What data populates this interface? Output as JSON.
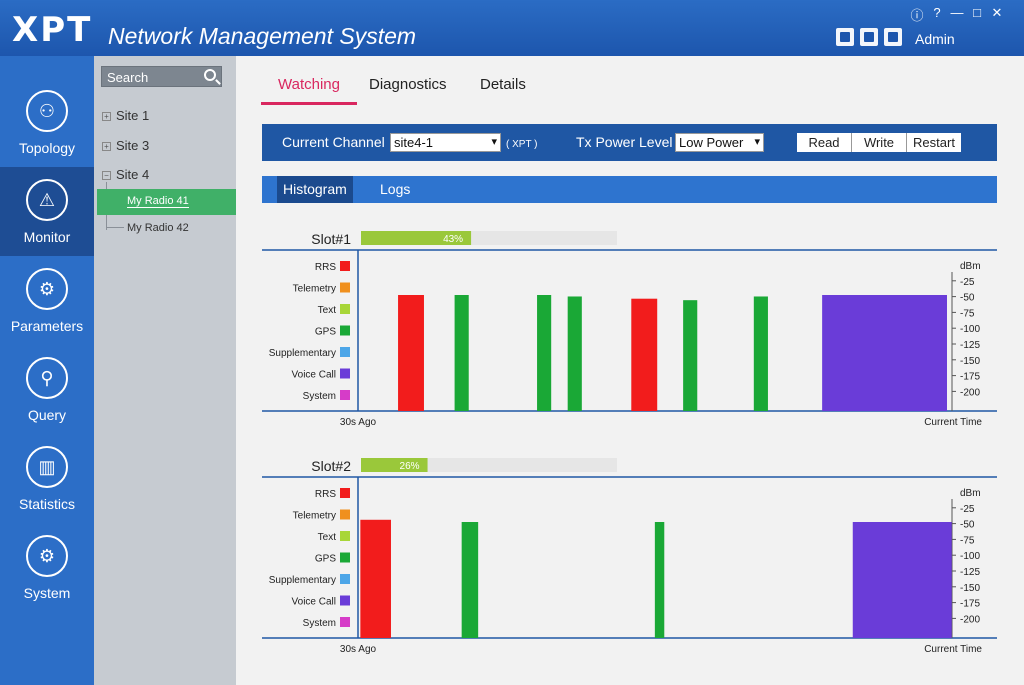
{
  "app": {
    "logo": "XPT",
    "title": "Network Management System",
    "user": "Admin"
  },
  "window_controls": [
    "ⓘ",
    "?",
    "—",
    "□",
    "✕"
  ],
  "toolbar_icons": [
    "device-icon",
    "export-icon",
    "user-icon"
  ],
  "nav": [
    {
      "label": "Topology",
      "icon": "topology-icon",
      "glyph": "⚇"
    },
    {
      "label": "Monitor",
      "icon": "monitor-icon",
      "glyph": "⚠"
    },
    {
      "label": "Parameters",
      "icon": "parameters-icon",
      "glyph": "⚙"
    },
    {
      "label": "Query",
      "icon": "query-icon",
      "glyph": "⚲"
    },
    {
      "label": "Statistics",
      "icon": "statistics-icon",
      "glyph": "▥"
    },
    {
      "label": "System",
      "icon": "system-icon",
      "glyph": "⚙"
    }
  ],
  "tree": {
    "search_placeholder": "Search",
    "sites": [
      {
        "label": "Site 1",
        "expander": "+"
      },
      {
        "label": "Site 3",
        "expander": "+"
      },
      {
        "label": "Site 4",
        "expander": "−"
      }
    ],
    "radios": [
      "My Radio 41",
      "My Radio 42"
    ]
  },
  "tabs": [
    "Watching",
    "Diagnostics",
    "Details"
  ],
  "toolbar": {
    "channel_label": "Current Channel",
    "channel_value": "site4-1",
    "channel_tag": "( XPT )",
    "power_label": "Tx Power Level",
    "power_value": "Low Power",
    "buttons": [
      "Read",
      "Write",
      "Restart"
    ]
  },
  "subtabs": [
    "Histogram",
    "Logs"
  ],
  "colors": {
    "RRS": "#f21c1c",
    "Telemetry": "#f0901e",
    "Text": "#a8d638",
    "GPS": "#1aa836",
    "Supplementary": "#4da6e8",
    "Voice Call": "#6a3cd8",
    "System": "#d63cc8",
    "usage_bar": "#9ac83a",
    "accent": "#d9275f"
  },
  "legend": [
    "RRS",
    "Telemetry",
    "Text",
    "GPS",
    "Supplementary",
    "Voice Call",
    "System"
  ],
  "y_axis": [
    "dBm",
    "-25",
    "-50",
    "-75",
    "-100",
    "-125",
    "-150",
    "-175",
    "-200"
  ],
  "x_axis": {
    "start": "30s Ago",
    "end": "Current Time"
  },
  "chart_data": [
    {
      "type": "bar",
      "title": "Slot#1",
      "usage_percent": 43,
      "usage_label": "43%",
      "xlabel_start": "30s Ago",
      "xlabel_end": "Current Time",
      "ylabel": "dBm",
      "ylim": [
        -200,
        0
      ],
      "x_unit": "seconds from 30s ago",
      "bars": [
        {
          "type": "RRS",
          "x": 1.7,
          "width": 1.1,
          "value": -50
        },
        {
          "type": "GPS",
          "x": 4.1,
          "width": 0.6,
          "value": -50
        },
        {
          "type": "GPS",
          "x": 7.6,
          "width": 0.6,
          "value": -50
        },
        {
          "type": "GPS",
          "x": 8.9,
          "width": 0.6,
          "value": -52
        },
        {
          "type": "RRS",
          "x": 11.6,
          "width": 1.1,
          "value": -55
        },
        {
          "type": "GPS",
          "x": 13.8,
          "width": 0.6,
          "value": -57
        },
        {
          "type": "GPS",
          "x": 16.8,
          "width": 0.6,
          "value": -52
        },
        {
          "type": "Voice Call",
          "x": 19.7,
          "width": 5.3,
          "value": -50
        }
      ]
    },
    {
      "type": "bar",
      "title": "Slot#2",
      "usage_percent": 26,
      "usage_label": "26%",
      "xlabel_start": "30s Ago",
      "xlabel_end": "Current Time",
      "ylabel": "dBm",
      "ylim": [
        -200,
        0
      ],
      "x_unit": "seconds from 30s ago",
      "bars": [
        {
          "type": "RRS",
          "x": 0.1,
          "width": 1.3,
          "value": -47
        },
        {
          "type": "GPS",
          "x": 4.4,
          "width": 0.7,
          "value": -50
        },
        {
          "type": "GPS",
          "x": 12.6,
          "width": 0.4,
          "value": -50
        },
        {
          "type": "Voice Call",
          "x": 21.0,
          "width": 4.2,
          "value": -50
        }
      ]
    }
  ]
}
